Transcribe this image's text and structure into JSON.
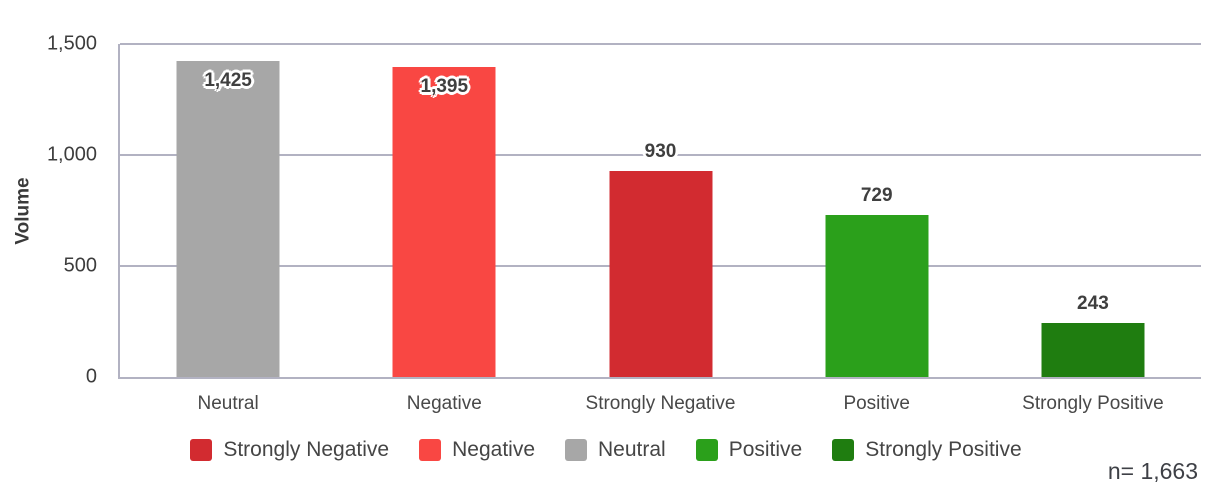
{
  "chart_data": {
    "type": "bar",
    "categories": [
      "Neutral",
      "Negative",
      "Strongly Negative",
      "Positive",
      "Strongly Positive"
    ],
    "values": [
      1425,
      1395,
      930,
      729,
      243
    ],
    "value_labels": [
      "1,425",
      "1,395",
      "930",
      "729",
      "243"
    ],
    "bar_colors": [
      "#a7a7a7",
      "#f94743",
      "#d22b30",
      "#2ba01b",
      "#1f7d10"
    ],
    "title": "",
    "xlabel": "",
    "ylabel": "Volume",
    "ylim": [
      0,
      1500
    ],
    "yticks": [
      0,
      500,
      1000,
      1500
    ],
    "ytick_labels": [
      "0",
      "500",
      "1,000",
      "1,500"
    ],
    "grid": true,
    "gridline_color": "#b2b2c2",
    "legend_position": "bottom",
    "legend": [
      {
        "label": "Strongly Negative",
        "color": "#d22b30"
      },
      {
        "label": "Negative",
        "color": "#f94743"
      },
      {
        "label": "Neutral",
        "color": "#a7a7a7"
      },
      {
        "label": "Positive",
        "color": "#2ba01b"
      },
      {
        "label": "Strongly Positive",
        "color": "#1f7d10"
      }
    ]
  },
  "annotation": {
    "sample_size": "n= 1,663"
  }
}
